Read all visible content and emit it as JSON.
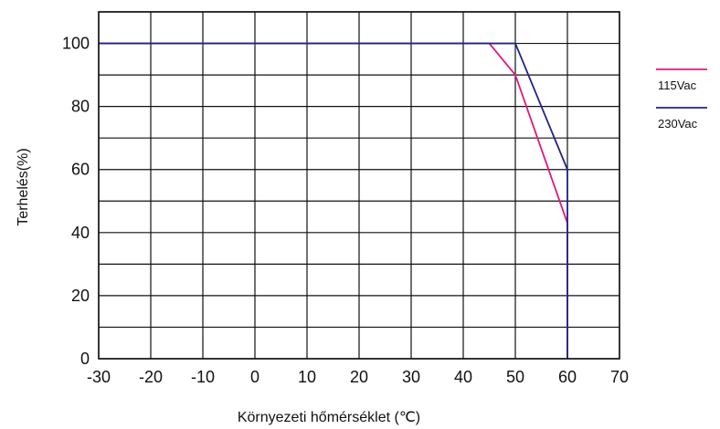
{
  "chart_data": {
    "type": "line",
    "title": "",
    "xlabel": "Környezeti hőmérséklet (℃)",
    "ylabel": "Terhelés(%)",
    "xlim": [
      -30,
      70
    ],
    "ylim": [
      0,
      110
    ],
    "x_ticks": [
      -30,
      -20,
      -10,
      0,
      10,
      20,
      30,
      40,
      50,
      60,
      70
    ],
    "y_ticks": [
      0,
      20,
      40,
      60,
      80,
      100
    ],
    "grid": true,
    "legend_position": "right",
    "series": [
      {
        "name": "115Vac",
        "color": "#e0197d",
        "points": [
          [
            -30,
            100
          ],
          [
            45,
            100
          ],
          [
            50,
            90
          ],
          [
            60,
            43
          ],
          [
            60,
            0
          ]
        ]
      },
      {
        "name": "230Vac",
        "color": "#23238c",
        "points": [
          [
            -30,
            100
          ],
          [
            50,
            100
          ],
          [
            60,
            60
          ],
          [
            60,
            0
          ]
        ]
      }
    ]
  }
}
